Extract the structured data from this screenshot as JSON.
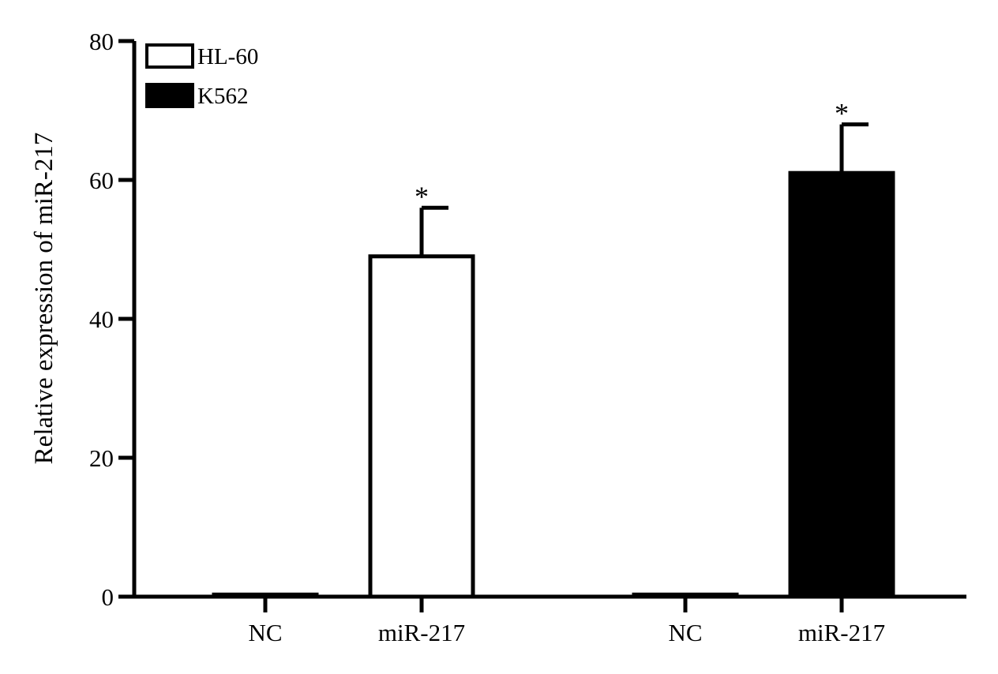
{
  "chart_data": {
    "type": "bar",
    "ylabel": "Relative expression of  miR-217",
    "ylim": [
      0,
      80
    ],
    "yticks": [
      0,
      20,
      40,
      60,
      80
    ],
    "legend": {
      "placement": "top-left",
      "entries": [
        {
          "name": "HL-60",
          "fill": "#ffffff"
        },
        {
          "name": "K562",
          "fill": "#000000"
        }
      ]
    },
    "bars": [
      {
        "label": "NC",
        "series": "HL-60",
        "value": 0.3,
        "error": null,
        "annotation": ""
      },
      {
        "label": "miR-217",
        "series": "HL-60",
        "value": 49,
        "error": 7,
        "annotation": "*"
      },
      {
        "label": "NC",
        "series": "K562",
        "value": 0.3,
        "error": null,
        "annotation": ""
      },
      {
        "label": "miR-217",
        "series": "K562",
        "value": 61,
        "error": 7,
        "annotation": "*"
      }
    ],
    "grid": false,
    "colors": {
      "outline": "#000000",
      "HL-60": "#ffffff",
      "K562": "#000000"
    }
  }
}
